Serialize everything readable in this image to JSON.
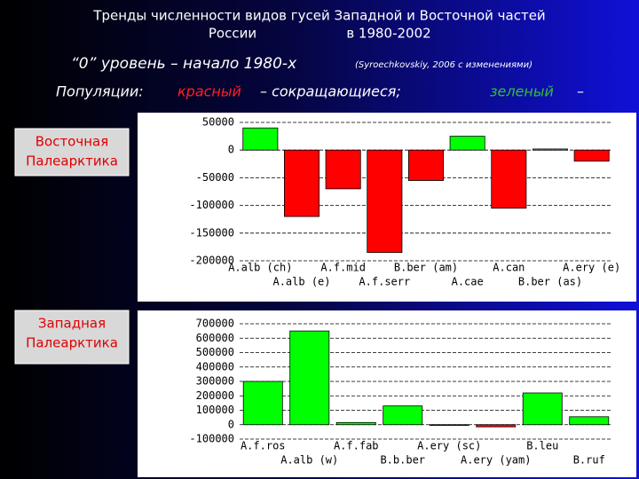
{
  "slide": {
    "title_line1": "Тренды численности видов гусей Западной и Восточной частей",
    "title_line2a": "России",
    "title_line2b": "в 1980-2002",
    "subtitle": "“0”  уровень – начало 1980-х",
    "source": "(Syroechkovskiy, 2006 с изменениями)",
    "legend_intro": "Популяции:",
    "legend_red": "красный",
    "legend_red_desc": "– сокращающиеся;",
    "legend_green": "зеленый",
    "legend_green_desc": "–"
  },
  "chart_data": [
    {
      "type": "bar",
      "label_lines": [
        "Восточная",
        "Палеарктика"
      ],
      "categories": [
        "A.alb (ch)",
        "A.alb (e)",
        "A.f.mid",
        "A.f.serr",
        "B.ber (am)",
        "A.cae",
        "A.can",
        "B.ber (as)",
        "A.ery (e)"
      ],
      "values": [
        40000,
        -120000,
        -70000,
        -185000,
        -55000,
        25000,
        -105000,
        2000,
        -20000
      ],
      "colors": [
        "#00ff00",
        "#ff0000",
        "#ff0000",
        "#ff0000",
        "#ff0000",
        "#00ff00",
        "#ff0000",
        "#00ff00",
        "#ff0000"
      ],
      "ylim": [
        -200000,
        50000
      ],
      "yticks": [
        -200000,
        -150000,
        -100000,
        -50000,
        0,
        50000
      ],
      "grid": true
    },
    {
      "type": "bar",
      "label_lines": [
        "Западная",
        "Палеарктика"
      ],
      "categories": [
        "A.f.ros",
        "A.alb (w)",
        "A.f.fab",
        "B.b.ber",
        "A.ery (sc)",
        "A.ery (yam)",
        "B.leu",
        "B.ruf"
      ],
      "values": [
        300000,
        650000,
        15000,
        130000,
        -5000,
        -15000,
        220000,
        55000
      ],
      "colors": [
        "#00ff00",
        "#00ff00",
        "#00ff00",
        "#00ff00",
        "#00ff00",
        "#ff0000",
        "#00ff00",
        "#00ff00"
      ],
      "ylim": [
        -100000,
        700000
      ],
      "yticks": [
        -100000,
        0,
        100000,
        200000,
        300000,
        400000,
        500000,
        600000,
        700000
      ],
      "grid": true
    }
  ]
}
